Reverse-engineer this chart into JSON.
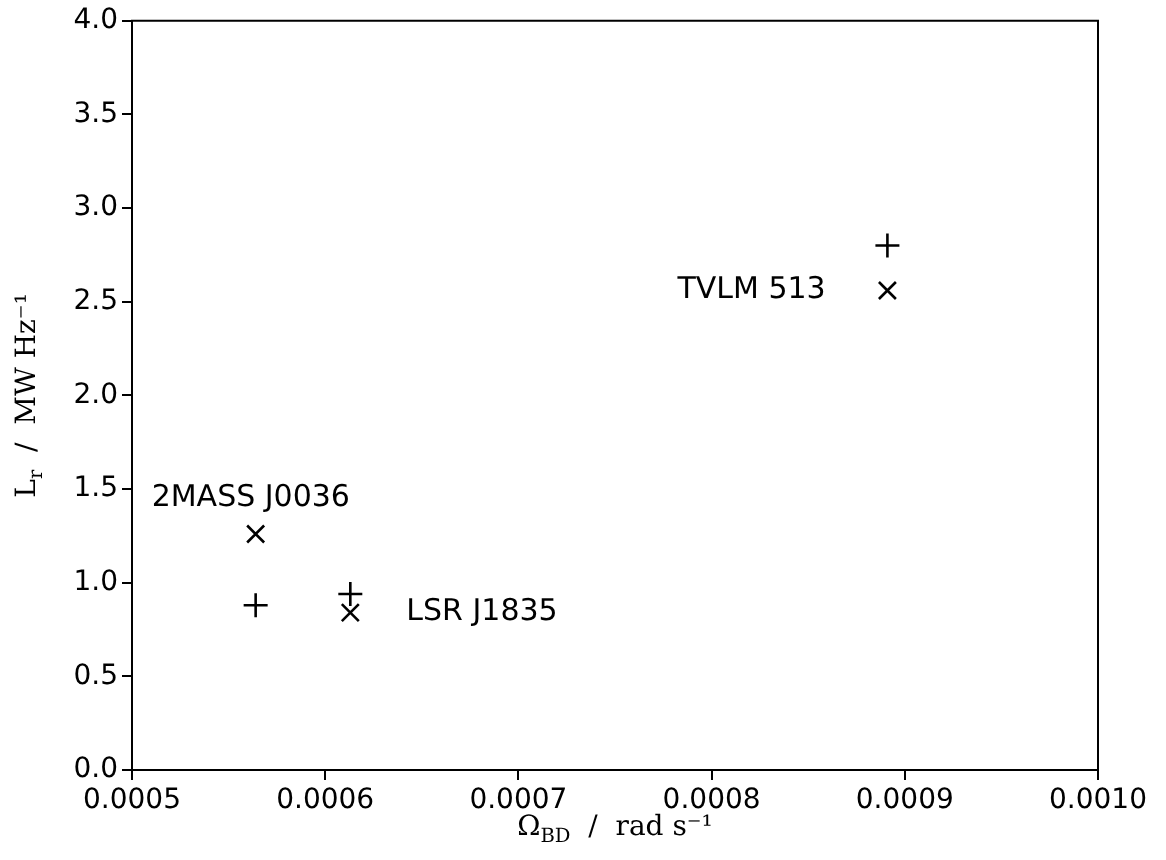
{
  "chart_data": {
    "type": "scatter",
    "xlabel": "Ω$_{BD}$  /  rad s⁻¹",
    "ylabel": "L$_{r}$  /  MW Hz⁻¹",
    "series": [
      {
        "marker": "plus",
        "color": "#000000",
        "x": [
          0.000564,
          0.000613,
          0.000891
        ],
        "values": [
          0.88,
          0.94,
          2.8
        ]
      },
      {
        "marker": "x",
        "color": "#000000",
        "x": [
          0.000564,
          0.000613,
          0.000891
        ],
        "values": [
          1.26,
          0.84,
          2.56
        ]
      }
    ],
    "annotations": [
      {
        "text": "2MASS J0036",
        "x": 0.000564,
        "y": 1.26
      },
      {
        "text": "LSR J1835",
        "x": 0.000613,
        "y": 0.84
      },
      {
        "text": "TVLM 513",
        "x": 0.000891,
        "y": 2.56
      }
    ],
    "xlim": [
      0.0005,
      0.001
    ],
    "xticks": [
      {
        "value": 0.0005,
        "label": "0.0005"
      },
      {
        "value": 0.0006,
        "label": "0.0006"
      },
      {
        "value": 0.0007,
        "label": "0.0007"
      },
      {
        "value": 0.0008,
        "label": "0.0008"
      },
      {
        "value": 0.0009,
        "label": "0.0009"
      },
      {
        "value": 0.001,
        "label": "0.0010"
      }
    ],
    "ylim": [
      0,
      4
    ],
    "yticks": [
      {
        "value": 0,
        "label": "0.0"
      },
      {
        "value": 0.5,
        "label": "0.5"
      },
      {
        "value": 1,
        "label": "1.0"
      },
      {
        "value": 1.5,
        "label": "1.5"
      },
      {
        "value": 2,
        "label": "2.0"
      },
      {
        "value": 2.5,
        "label": "2.5"
      },
      {
        "value": 3,
        "label": "3.0"
      },
      {
        "value": 3.5,
        "label": "3.5"
      },
      {
        "value": 4,
        "label": "4.0"
      }
    ],
    "grid": false,
    "legend": false
  }
}
